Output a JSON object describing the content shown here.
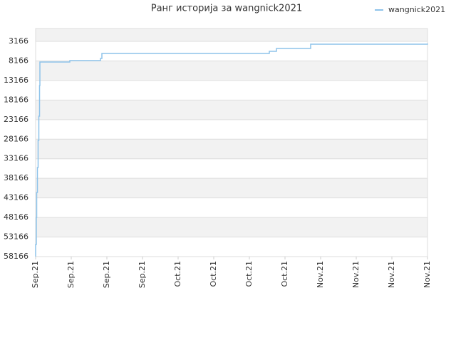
{
  "chart_data": {
    "type": "line",
    "title": "Ранг историја за wangnick2021",
    "series": [
      {
        "name": "wangnick2021",
        "color": "#8ec3ea",
        "x": [
          0,
          0.0,
          0.02,
          0.03,
          0.05,
          0.07,
          0.09,
          0.11,
          0.12,
          0.96,
          1.82,
          1.86,
          6.56,
          6.76,
          7.72,
          11
        ],
        "values": [
          58166,
          55070,
          48150,
          41780,
          35400,
          28480,
          22290,
          14460,
          8450,
          8080,
          7540,
          6260,
          5720,
          4990,
          3900,
          3710
        ]
      }
    ],
    "xlim": [
      0,
      11
    ],
    "xticks": [
      {
        "value": 0,
        "label": "Sep.21"
      },
      {
        "value": 1,
        "label": "Sep.21"
      },
      {
        "value": 2,
        "label": "Sep.21"
      },
      {
        "value": 3,
        "label": "Sep.21"
      },
      {
        "value": 4,
        "label": "Oct.21"
      },
      {
        "value": 5,
        "label": "Oct.21"
      },
      {
        "value": 6,
        "label": "Oct.21"
      },
      {
        "value": 7,
        "label": "Oct.21"
      },
      {
        "value": 8,
        "label": "Nov.21"
      },
      {
        "value": 9,
        "label": "Nov.21"
      },
      {
        "value": 10,
        "label": "Nov.21"
      },
      {
        "value": 11,
        "label": "Nov.21"
      }
    ],
    "ylim": [
      58166,
      -114
    ],
    "yticks": [
      3166,
      8166,
      13166,
      18166,
      23166,
      28166,
      33166,
      38166,
      43166,
      48166,
      53166,
      58166
    ],
    "grid": true,
    "legend": "top-right"
  }
}
